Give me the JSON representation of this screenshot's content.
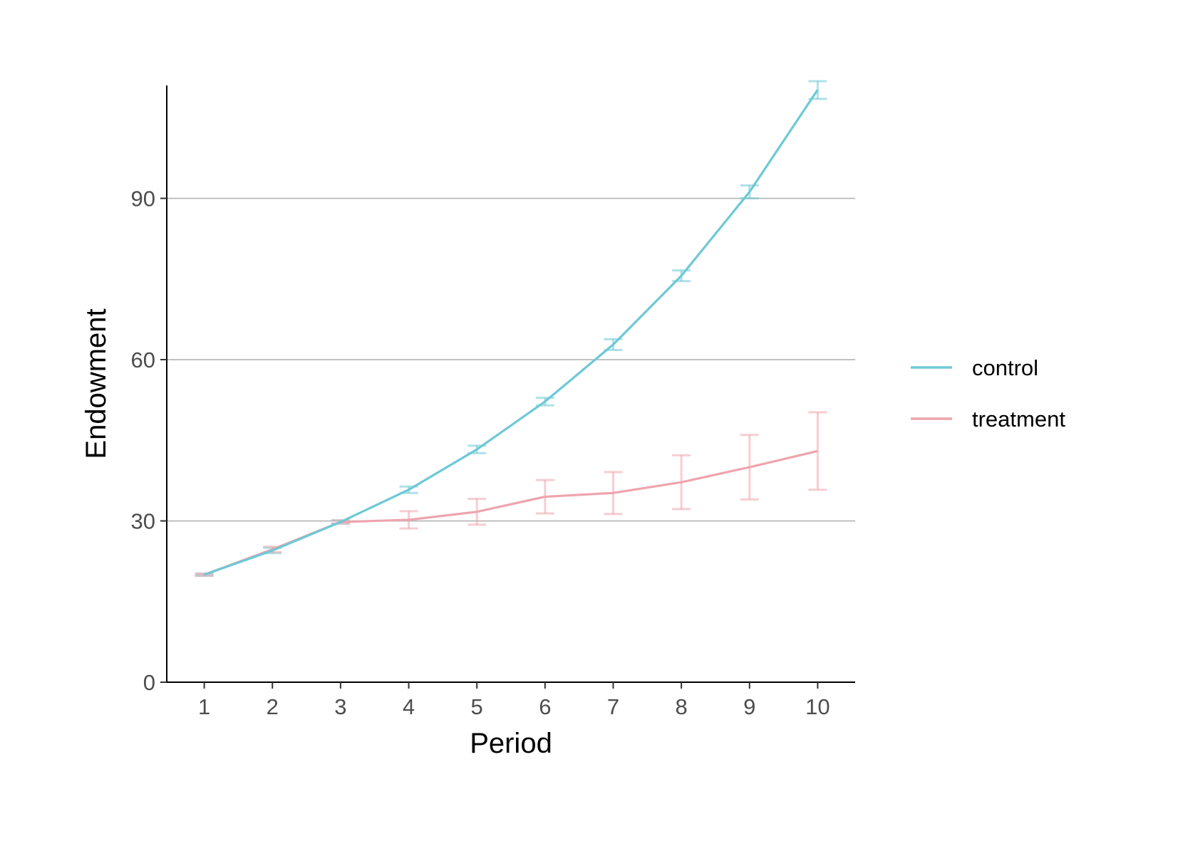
{
  "chart_data": {
    "type": "line",
    "title": "",
    "xlabel": "Period",
    "ylabel": "Endowment",
    "x": [
      1,
      2,
      3,
      4,
      5,
      6,
      7,
      8,
      9,
      10
    ],
    "xlim": [
      0.45,
      10.55
    ],
    "ylim": [
      0,
      111
    ],
    "yticks": [
      0,
      30,
      60,
      90
    ],
    "grid": "horizontal major lines at 30, 60, 90",
    "legend_position": "right",
    "series": [
      {
        "name": "control",
        "color": "#6ec8d6",
        "values": [
          20,
          24.5,
          29.8,
          35.8,
          43.3,
          52.2,
          62.8,
          75.6,
          91.2,
          110.2
        ],
        "error_low": [
          19.8,
          24.0,
          29.5,
          35.2,
          42.6,
          51.5,
          61.8,
          74.6,
          90.0,
          108.5
        ],
        "error_high": [
          20.2,
          25.0,
          30.1,
          36.4,
          44.0,
          52.9,
          63.8,
          76.6,
          92.4,
          111.8
        ]
      },
      {
        "name": "treatment",
        "color": "#eea4ae",
        "values": [
          20,
          24.7,
          29.8,
          30.2,
          31.7,
          34.5,
          35.2,
          37.2,
          40.0,
          43.0
        ],
        "error_low": [
          19.8,
          24.2,
          29.5,
          28.6,
          29.3,
          31.4,
          31.3,
          32.2,
          34.0,
          35.8
        ],
        "error_high": [
          20.2,
          25.2,
          30.1,
          31.8,
          34.1,
          37.6,
          39.1,
          42.2,
          46.0,
          50.2
        ]
      }
    ]
  }
}
